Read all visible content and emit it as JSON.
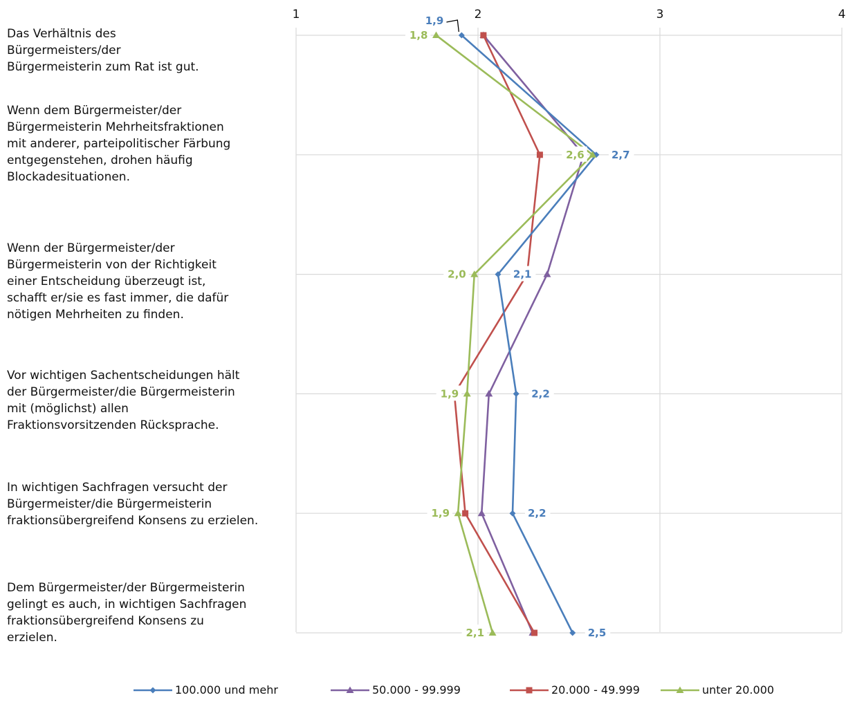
{
  "chart_data": {
    "type": "line",
    "orientation": "horizontal-value-axis",
    "x_axis": {
      "range": [
        1,
        4
      ],
      "ticks": [
        1,
        2,
        3,
        4
      ],
      "position": "top"
    },
    "grid": true,
    "legend_position": "bottom",
    "categories": [
      "Das Verhältnis des Bürgermeisters/der Bürgermeisterin zum Rat ist gut.",
      "Wenn dem Bürgermeister/der Bürgermeisterin Mehrheitsfraktionen mit anderer, parteipolitischer Färbung entgegenstehen, drohen häufig Blockadesituationen.",
      "Wenn der Bürgermeister/der Bürgermeisterin von der Richtigkeit einer Entscheidung überzeugt ist, schafft er/sie es fast immer, die dafür nötigen Mehrheiten zu finden.",
      "Vor wichtigen Sachentscheidungen hält der Bürgermeister/die Bürgermeisterin mit (möglichst) allen Fraktionsvorsitzenden Rücksprache.",
      "In wichtigen Sachfragen versucht der Bürgermeister/die Bürgermeisterin fraktionsübergreifend Konsens zu erzielen.",
      "Dem Bürgermeister/der Bürgermeisterin gelingt es auch, in wichtigen Sachfragen fraktionsübergreifend Konsens zu erzielen."
    ],
    "category_lines": [
      [
        "Das Verhältnis des",
        "Bürgermeisters/der",
        "Bürgermeisterin zum Rat ist gut."
      ],
      [
        "Wenn dem Bürgermeister/der",
        "Bürgermeisterin Mehrheitsfraktionen",
        "mit anderer, parteipolitischer Färbung",
        "entgegenstehen, drohen häufig",
        "Blockadesituationen."
      ],
      [
        "Wenn der Bürgermeister/der",
        "Bürgermeisterin von der Richtigkeit",
        "einer Entscheidung überzeugt ist,",
        "schafft er/sie es fast immer, die dafür",
        "nötigen Mehrheiten zu finden."
      ],
      [
        "Vor wichtigen Sachentscheidungen hält",
        "der Bürgermeister/die Bürgermeisterin",
        "mit (möglichst) allen",
        "Fraktionsvorsitzenden Rücksprache."
      ],
      [
        "In wichtigen Sachfragen versucht der",
        "Bürgermeister/die Bürgermeisterin",
        "fraktionsübergreifend Konsens zu erzielen."
      ],
      [
        "Dem Bürgermeister/der Bürgermeisterin",
        "gelingt es auch, in wichtigen Sachfragen",
        "fraktionsübergreifend Konsens zu",
        "erzielen."
      ]
    ],
    "series": [
      {
        "name": "100.000 und mehr",
        "color": "#4a7ebb",
        "marker": "diamond",
        "values": [
          1.91,
          2.65,
          2.11,
          2.21,
          2.19,
          2.52
        ],
        "labels": [
          "1,9",
          "2,7",
          "2,1",
          "2,2",
          "2,2",
          "2,5"
        ]
      },
      {
        "name": "50.000 - 99.999",
        "color": "#7f60a0",
        "marker": "triangle",
        "values": [
          2.03,
          2.58,
          2.38,
          2.06,
          2.02,
          2.3
        ],
        "labels": []
      },
      {
        "name": "20.000 - 49.999",
        "color": "#c0504d",
        "marker": "square",
        "values": [
          2.03,
          2.34,
          2.27,
          1.87,
          1.93,
          2.31
        ],
        "labels": []
      },
      {
        "name": "unter 20.000",
        "color": "#9bbb59",
        "marker": "triangle",
        "values": [
          1.77,
          2.63,
          1.98,
          1.94,
          1.89,
          2.08
        ],
        "labels": [
          "1,8",
          "2,6",
          "2,0",
          "1,9",
          "1,9",
          "2,1"
        ]
      }
    ]
  }
}
